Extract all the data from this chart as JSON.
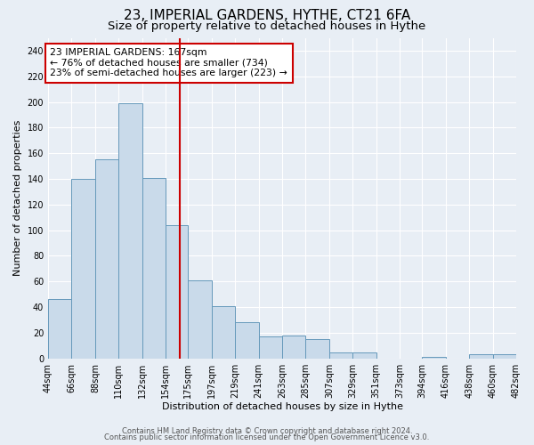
{
  "title": "23, IMPERIAL GARDENS, HYTHE, CT21 6FA",
  "subtitle": "Size of property relative to detached houses in Hythe",
  "xlabel": "Distribution of detached houses by size in Hythe",
  "ylabel": "Number of detached properties",
  "bin_edges": [
    44,
    66,
    88,
    110,
    132,
    154,
    175,
    197,
    219,
    241,
    263,
    285,
    307,
    329,
    351,
    373,
    394,
    416,
    438,
    460,
    482
  ],
  "bar_heights": [
    46,
    140,
    155,
    199,
    141,
    104,
    61,
    41,
    28,
    17,
    18,
    15,
    5,
    5,
    0,
    0,
    1,
    0,
    3,
    3
  ],
  "bar_color": "#c9daea",
  "bar_edge_color": "#6699bb",
  "vline_x": 167,
  "vline_color": "#cc0000",
  "annotation_text": "23 IMPERIAL GARDENS: 167sqm\n← 76% of detached houses are smaller (734)\n23% of semi-detached houses are larger (223) →",
  "annotation_box_facecolor": "#ffffff",
  "annotation_box_edgecolor": "#cc0000",
  "ylim": [
    0,
    250
  ],
  "yticks": [
    0,
    20,
    40,
    60,
    80,
    100,
    120,
    140,
    160,
    180,
    200,
    220,
    240
  ],
  "tick_labels": [
    "44sqm",
    "66sqm",
    "88sqm",
    "110sqm",
    "132sqm",
    "154sqm",
    "175sqm",
    "197sqm",
    "219sqm",
    "241sqm",
    "263sqm",
    "285sqm",
    "307sqm",
    "329sqm",
    "351sqm",
    "373sqm",
    "394sqm",
    "416sqm",
    "438sqm",
    "460sqm",
    "482sqm"
  ],
  "background_color": "#e8eef5",
  "footer_line1": "Contains HM Land Registry data © Crown copyright and database right 2024.",
  "footer_line2": "Contains public sector information licensed under the Open Government Licence v3.0.",
  "title_fontsize": 11,
  "subtitle_fontsize": 9.5,
  "axis_fontsize": 8,
  "tick_fontsize": 7
}
